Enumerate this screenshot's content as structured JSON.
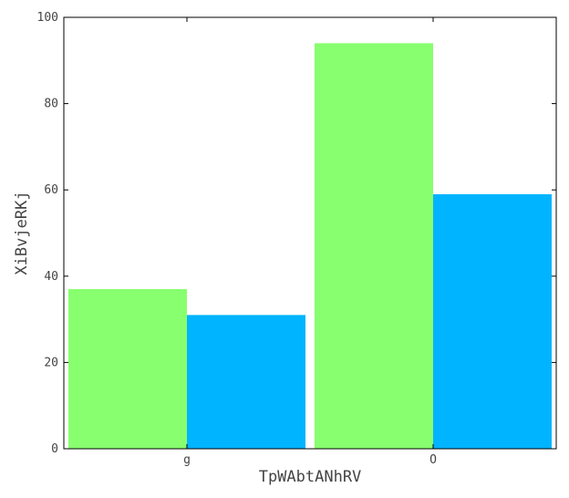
{
  "chart_data": {
    "type": "bar",
    "title": "",
    "xlabel": "TpWAbtANhRV",
    "ylabel": "XiBvjeRKj",
    "categories": [
      "g",
      "O"
    ],
    "series": [
      {
        "values": [
          37,
          94
        ],
        "color": "#88ff6e"
      },
      {
        "values": [
          31,
          59
        ],
        "color": "#00b4ff"
      }
    ],
    "ylim": [
      0,
      100
    ],
    "yticks": [
      "0",
      "20",
      "40",
      "60",
      "80",
      "100"
    ],
    "grid": false,
    "legend": "none"
  }
}
